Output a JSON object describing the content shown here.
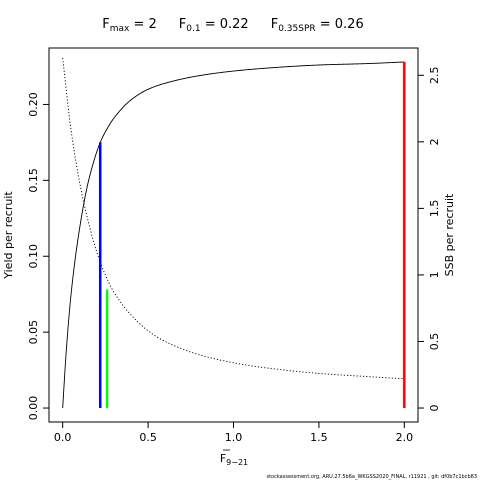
{
  "chart_data": {
    "type": "line",
    "title": {
      "parts": [
        {
          "main": "F",
          "sub": "max",
          "rest": " = 2"
        },
        {
          "main": "F",
          "sub": "0.1",
          "rest": " = 0.22"
        },
        {
          "main": "F",
          "sub": "0.35SPR",
          "rest": " = 0.26"
        }
      ]
    },
    "xlabel": {
      "main": "F",
      "sub": "9−21",
      "bar": true
    },
    "ylabel_left": "Yield per recruit",
    "ylabel_right": "SSB per recruit",
    "xlim": [
      0,
      2
    ],
    "ylim_left": [
      0,
      0.228
    ],
    "ylim_right": [
      0,
      2.6
    ],
    "x_ticks": [
      0,
      0.5,
      1,
      1.5,
      2
    ],
    "x_tick_labels": [
      "0.0",
      "0.5",
      "1.0",
      "1.5",
      "2.0"
    ],
    "y_left_ticks": [
      0,
      0.05,
      0.1,
      0.15,
      0.2
    ],
    "y_left_tick_labels": [
      "0.00",
      "0.05",
      "0.10",
      "0.15",
      "0.20"
    ],
    "y_right_ticks": [
      0,
      0.5,
      1,
      1.5,
      2,
      2.5
    ],
    "y_right_tick_labels": [
      "0",
      "0.5",
      "1",
      "1.5",
      "2",
      "2.5"
    ],
    "series": [
      {
        "style": "solid",
        "axis": "left",
        "x": [
          0,
          0.02,
          0.05,
          0.1,
          0.15,
          0.22,
          0.26,
          0.3,
          0.4,
          0.5,
          0.6,
          0.8,
          1.0,
          1.2,
          1.5,
          1.8,
          2.0
        ],
        "y": [
          0,
          0.036,
          0.076,
          0.119,
          0.149,
          0.175,
          0.184,
          0.191,
          0.203,
          0.21,
          0.214,
          0.219,
          0.222,
          0.224,
          0.226,
          0.227,
          0.228
        ]
      },
      {
        "style": "dotted",
        "axis": "right",
        "x": [
          0,
          0.05,
          0.1,
          0.15,
          0.2,
          0.26,
          0.3,
          0.4,
          0.5,
          0.6,
          0.8,
          1.0,
          1.2,
          1.5,
          1.8,
          2.0
        ],
        "y": [
          2.63,
          2.08,
          1.69,
          1.4,
          1.17,
          0.97,
          0.87,
          0.7,
          0.58,
          0.5,
          0.4,
          0.34,
          0.3,
          0.26,
          0.235,
          0.22
        ]
      }
    ],
    "reference_lines": [
      {
        "x": 0.22,
        "y": 0.175,
        "axis": "left",
        "color": "#0000ff"
      },
      {
        "x": 0.26,
        "y": 0.078,
        "axis": "left",
        "color": "#00ff00"
      },
      {
        "x": 2.0,
        "y": 0.228,
        "axis": "left",
        "color": "#ff0000"
      }
    ],
    "grid": false,
    "legend": "none"
  },
  "footer": "stockassessment.org,  ARU.27.5b6a_WKGSS2020_FINAL,  r11921  ,  git:  df0b7c1bcb83"
}
